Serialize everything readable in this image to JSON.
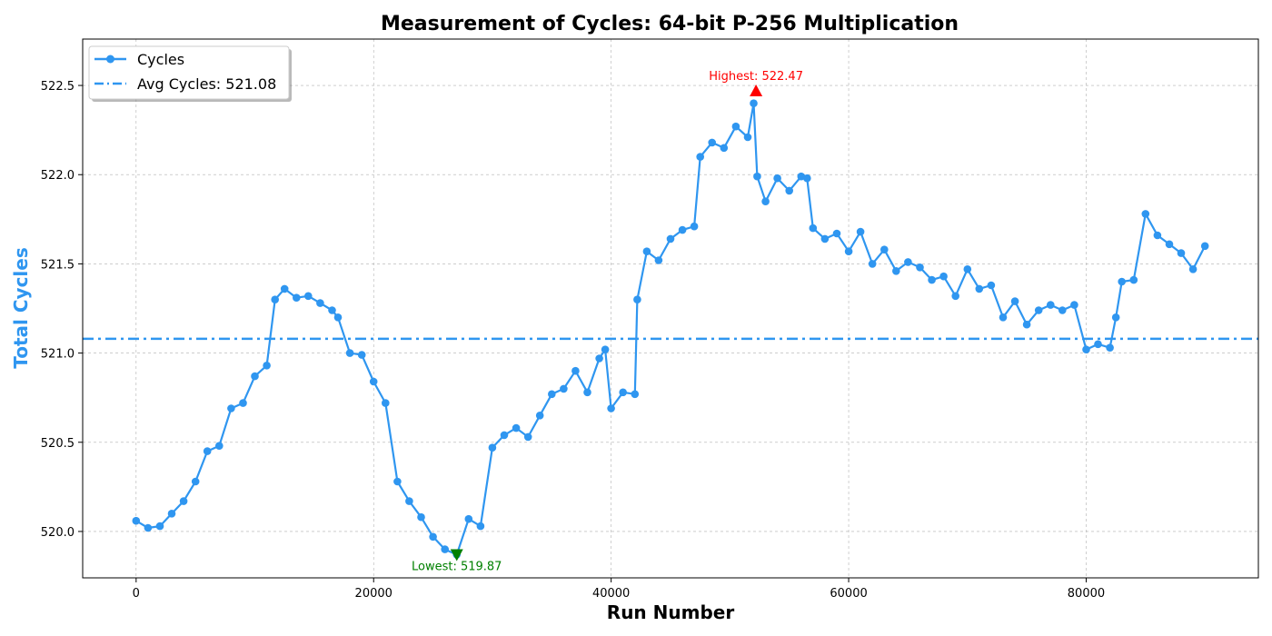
{
  "chart_data": {
    "type": "line",
    "title": "Measurement of Cycles: 64-bit P-256 Multiplication",
    "xlabel": "Run Number",
    "ylabel": "Total Cycles",
    "xlim": [
      -4500,
      94500
    ],
    "ylim": [
      519.74,
      522.76
    ],
    "xticks": [
      0,
      20000,
      40000,
      60000,
      80000
    ],
    "xtick_labels": [
      "0",
      "20000",
      "40000",
      "60000",
      "80000"
    ],
    "yticks": [
      520.0,
      520.5,
      521.0,
      521.5,
      522.0,
      522.5
    ],
    "ytick_labels": [
      "520.0",
      "520.5",
      "521.0",
      "521.5",
      "522.0",
      "522.5"
    ],
    "grid": true,
    "legend_position": "top-left",
    "colors": {
      "series": "#2f96f0",
      "highest": "#ff0000",
      "lowest": "#008000"
    },
    "series": [
      {
        "name": "Cycles",
        "x": [
          0,
          1000,
          2000,
          3000,
          4000,
          5000,
          6000,
          7000,
          8000,
          9000,
          10000,
          11000,
          11700,
          12500,
          13500,
          14500,
          15500,
          16500,
          17000,
          18000,
          19000,
          20000,
          21000,
          22000,
          23000,
          24000,
          25000,
          26000,
          27000,
          28000,
          29000,
          30000,
          31000,
          32000,
          33000,
          34000,
          35000,
          36000,
          37000,
          38000,
          39000,
          39500,
          40000,
          41000,
          42000,
          42200,
          43000,
          44000,
          45000,
          46000,
          47000,
          47500,
          48500,
          49500,
          50500,
          51500,
          52000,
          52300,
          53000,
          54000,
          55000,
          56000,
          56500,
          57000,
          58000,
          59000,
          60000,
          61000,
          62000,
          63000,
          64000,
          65000,
          66000,
          67000,
          68000,
          69000,
          70000,
          71000,
          72000,
          73000,
          74000,
          75000,
          76000,
          77000,
          78000,
          79000,
          80000,
          81000,
          82000,
          82500,
          83000,
          84000,
          85000,
          86000,
          87000,
          88000,
          89000,
          90000
        ],
        "y": [
          520.06,
          520.02,
          520.03,
          520.1,
          520.17,
          520.28,
          520.45,
          520.48,
          520.69,
          520.72,
          520.87,
          520.93,
          521.3,
          521.36,
          521.31,
          521.32,
          521.28,
          521.24,
          521.2,
          521.0,
          520.99,
          520.84,
          520.72,
          520.28,
          520.17,
          520.08,
          519.97,
          519.9,
          519.87,
          520.07,
          520.03,
          520.47,
          520.54,
          520.58,
          520.53,
          520.65,
          520.77,
          520.8,
          520.9,
          520.78,
          520.97,
          521.02,
          520.69,
          520.78,
          520.77,
          521.3,
          521.57,
          521.52,
          521.64,
          521.69,
          521.71,
          522.1,
          522.18,
          522.15,
          522.27,
          522.21,
          522.4,
          521.99,
          521.85,
          521.98,
          521.91,
          521.99,
          521.98,
          521.7,
          521.64,
          521.67,
          521.57,
          521.68,
          521.5,
          521.58,
          521.46,
          521.51,
          521.48,
          521.41,
          521.43,
          521.32,
          521.47,
          521.36,
          521.38,
          521.2,
          521.29,
          521.16,
          521.24,
          521.27,
          521.24,
          521.27,
          521.02,
          521.05,
          521.03,
          521.2,
          521.4,
          521.41,
          521.78,
          521.66,
          521.61,
          521.56,
          521.47,
          521.6
        ]
      }
    ],
    "average": {
      "label": "Avg Cycles: 521.08",
      "value": 521.08
    },
    "highest": {
      "label": "Highest: 522.47",
      "x": 52200,
      "y": 522.47
    },
    "lowest": {
      "label": "Lowest: 519.87",
      "x": 27000,
      "y": 519.87
    }
  }
}
